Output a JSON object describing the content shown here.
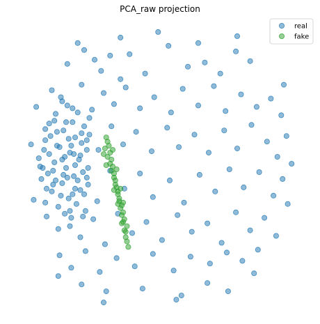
{
  "chart_data": {
    "type": "scatter",
    "title": "PCA_raw projection",
    "xlabel": "",
    "ylabel": "",
    "axes_visible": false,
    "grid": false,
    "legend_position": "top-right",
    "series": [
      {
        "name": "real",
        "color": "#1f77b4",
        "opacity": 0.5,
        "points": [
          [
            -7.2,
            7.1
          ],
          [
            -6.4,
            8.6
          ],
          [
            -5.9,
            8.1
          ],
          [
            -5.1,
            7.4
          ],
          [
            -4.6,
            6.6
          ],
          [
            -3.9,
            7.7
          ],
          [
            -3.1,
            6.0
          ],
          [
            -2.4,
            7.8
          ],
          [
            -1.2,
            6.4
          ],
          [
            0.6,
            8.4
          ],
          [
            2.1,
            6.9
          ],
          [
            3.4,
            7.2
          ],
          [
            4.6,
            6.4
          ],
          [
            5.8,
            8.0
          ],
          [
            6.9,
            7.3
          ],
          [
            -8.4,
            5.2
          ],
          [
            -7.6,
            4.4
          ],
          [
            -6.1,
            5.6
          ],
          [
            -5.3,
            3.8
          ],
          [
            -4.4,
            5.0
          ],
          [
            -3.6,
            4.2
          ],
          [
            -2.7,
            5.4
          ],
          [
            -1.6,
            3.9
          ],
          [
            -0.5,
            4.7
          ],
          [
            0.8,
            3.6
          ],
          [
            1.7,
            5.3
          ],
          [
            2.9,
            4.1
          ],
          [
            4.1,
            5.5
          ],
          [
            5.0,
            3.7
          ],
          [
            6.2,
            4.9
          ],
          [
            7.4,
            4.0
          ],
          [
            8.5,
            4.6
          ],
          [
            9.3,
            3.4
          ],
          [
            -8.9,
            2.4
          ],
          [
            -8.0,
            1.2
          ],
          [
            -7.3,
            2.9
          ],
          [
            -6.7,
            0.6
          ],
          [
            -5.5,
            2.0
          ],
          [
            -4.8,
            0.9
          ],
          [
            -3.8,
            2.6
          ],
          [
            -2.9,
            1.3
          ],
          [
            -1.9,
            2.2
          ],
          [
            -0.7,
            0.8
          ],
          [
            0.5,
            2.5
          ],
          [
            1.4,
            1.1
          ],
          [
            2.6,
            2.0
          ],
          [
            3.7,
            0.7
          ],
          [
            4.9,
            2.3
          ],
          [
            5.9,
            1.0
          ],
          [
            7.0,
            2.7
          ],
          [
            8.2,
            1.5
          ],
          [
            9.0,
            0.4
          ],
          [
            9.7,
            1.9
          ],
          [
            -9.1,
            -0.4
          ],
          [
            -8.3,
            -1.6
          ],
          [
            -7.5,
            -0.9
          ],
          [
            -6.8,
            -2.3
          ],
          [
            -5.7,
            -1.1
          ],
          [
            -4.9,
            -2.8
          ],
          [
            -3.9,
            -0.6
          ],
          [
            -2.8,
            -1.9
          ],
          [
            -1.6,
            -0.8
          ],
          [
            -0.6,
            -2.5
          ],
          [
            0.7,
            -1.3
          ],
          [
            1.8,
            -2.9
          ],
          [
            3.0,
            -0.9
          ],
          [
            4.2,
            -2.1
          ],
          [
            5.3,
            -0.5
          ],
          [
            6.4,
            -1.8
          ],
          [
            7.6,
            -0.7
          ],
          [
            8.7,
            -2.4
          ],
          [
            9.4,
            -1.2
          ],
          [
            -8.8,
            -3.9
          ],
          [
            -7.9,
            -4.8
          ],
          [
            -7.0,
            -3.5
          ],
          [
            -6.2,
            -5.4
          ],
          [
            -5.2,
            -4.1
          ],
          [
            -4.3,
            -5.9
          ],
          [
            -3.3,
            -3.7
          ],
          [
            -2.2,
            -5.1
          ],
          [
            -1.1,
            -4.3
          ],
          [
            0.1,
            -5.6
          ],
          [
            1.3,
            -3.8
          ],
          [
            2.4,
            -5.0
          ],
          [
            3.6,
            -4.4
          ],
          [
            4.7,
            -5.8
          ],
          [
            5.8,
            -3.6
          ],
          [
            6.9,
            -4.9
          ],
          [
            8.0,
            -4.0
          ],
          [
            8.9,
            -5.3
          ],
          [
            -7.8,
            -6.7
          ],
          [
            -6.9,
            -7.6
          ],
          [
            -5.8,
            -6.4
          ],
          [
            -4.7,
            -7.9
          ],
          [
            -3.4,
            -6.9
          ],
          [
            -2.0,
            -7.5
          ],
          [
            -0.6,
            -6.6
          ],
          [
            1.0,
            -7.8
          ],
          [
            2.3,
            -6.8
          ],
          [
            3.8,
            -7.3
          ],
          [
            5.1,
            -6.5
          ],
          [
            6.3,
            -7.1
          ],
          [
            7.5,
            -6.3
          ],
          [
            -6.1,
            -8.8
          ],
          [
            -4.2,
            -9.3
          ],
          [
            -1.4,
            -9.1
          ],
          [
            1.6,
            -9.6
          ],
          [
            3.6,
            -8.7
          ],
          [
            -4.4,
            -10.1
          ],
          [
            1.2,
            -9.9
          ],
          [
            5.2,
            -9.3
          ],
          [
            -9.6,
            4.0
          ],
          [
            -9.8,
            -2.7
          ],
          [
            9.8,
            -3.0
          ],
          [
            9.5,
            5.6
          ],
          [
            10.1,
            -0.1
          ],
          [
            -10.0,
            1.3
          ],
          [
            -3.1,
            9.0
          ],
          [
            -0.2,
            9.4
          ],
          [
            2.9,
            8.6
          ],
          [
            5.9,
            9.1
          ],
          [
            -7.9,
            -8.2
          ],
          [
            7.2,
            -8.0
          ],
          [
            -9.4,
            0.3
          ],
          [
            -9.2,
            -1.2
          ],
          [
            -8.9,
            1.6
          ],
          [
            -8.7,
            -0.8
          ],
          [
            -8.6,
            2.8
          ],
          [
            -8.4,
            -2.1
          ],
          [
            -8.2,
            0.0
          ],
          [
            -8.1,
            3.5
          ],
          [
            -7.9,
            -3.2
          ],
          [
            -7.8,
            1.1
          ],
          [
            -7.6,
            -1.5
          ],
          [
            -7.5,
            2.3
          ],
          [
            -7.3,
            -0.4
          ],
          [
            -7.2,
            4.1
          ],
          [
            -7.1,
            -2.6
          ],
          [
            -7.0,
            0.7
          ],
          [
            -6.9,
            -4.0
          ],
          [
            -6.8,
            2.9
          ],
          [
            -6.7,
            -1.0
          ],
          [
            -6.6,
            1.8
          ],
          [
            -6.5,
            -3.0
          ],
          [
            -6.4,
            3.6
          ],
          [
            -6.3,
            0.2
          ],
          [
            -6.2,
            -2.0
          ],
          [
            -6.1,
            1.4
          ],
          [
            -6.0,
            -0.7
          ],
          [
            -5.9,
            2.6
          ],
          [
            -5.8,
            -3.5
          ],
          [
            -5.7,
            0.9
          ],
          [
            -5.6,
            -1.6
          ],
          [
            -9.3,
            -0.3
          ],
          [
            -9.0,
            0.9
          ],
          [
            -8.8,
            -1.9
          ],
          [
            -8.5,
            1.9
          ],
          [
            -8.3,
            -0.6
          ],
          [
            -8.0,
            2.2
          ],
          [
            -7.7,
            -2.4
          ],
          [
            -7.4,
            0.4
          ],
          [
            -7.2,
            -1.1
          ],
          [
            -6.9,
            1.2
          ],
          [
            -6.6,
            -0.2
          ],
          [
            -6.4,
            -1.3
          ],
          [
            -6.2,
            0.5
          ],
          [
            -5.9,
            -2.3
          ],
          [
            -5.7,
            1.6
          ],
          [
            -8.6,
            0.6
          ],
          [
            -8.1,
            -1.3
          ],
          [
            -7.6,
            0.2
          ],
          [
            -7.1,
            1.7
          ],
          [
            -6.6,
            -1.9
          ],
          [
            -6.1,
            2.1
          ],
          [
            -5.6,
            -0.4
          ],
          [
            -8.9,
            -2.9
          ],
          [
            -8.2,
            3.0
          ],
          [
            -7.4,
            -3.7
          ],
          [
            -6.8,
            3.9
          ],
          [
            -6.0,
            -3.9
          ],
          [
            -5.5,
            3.2
          ],
          [
            -7.7,
            4.7
          ],
          [
            -7.0,
            -4.6
          ]
        ]
      },
      {
        "name": "fake",
        "color": "#2ca02c",
        "opacity": 0.5,
        "points": [
          [
            -4.2,
            1.8
          ],
          [
            -4.0,
            1.2
          ],
          [
            -3.9,
            0.7
          ],
          [
            -3.8,
            0.2
          ],
          [
            -3.7,
            -0.3
          ],
          [
            -3.6,
            -0.8
          ],
          [
            -3.5,
            -1.3
          ],
          [
            -3.4,
            -1.8
          ],
          [
            -3.3,
            -2.3
          ],
          [
            -3.2,
            -2.8
          ],
          [
            -3.1,
            -3.3
          ],
          [
            -3.0,
            -3.8
          ],
          [
            -2.9,
            -4.3
          ],
          [
            -2.8,
            -4.9
          ],
          [
            -2.7,
            -5.4
          ],
          [
            -4.3,
            1.0
          ],
          [
            -4.1,
            0.4
          ],
          [
            -3.9,
            -0.1
          ],
          [
            -3.8,
            -0.6
          ],
          [
            -3.6,
            -1.1
          ],
          [
            -3.5,
            -1.6
          ],
          [
            -3.3,
            -2.1
          ],
          [
            -3.2,
            -2.6
          ],
          [
            -3.0,
            -3.1
          ],
          [
            -2.9,
            -3.6
          ],
          [
            -2.8,
            -4.1
          ],
          [
            -2.6,
            -4.6
          ],
          [
            -2.6,
            -5.7
          ],
          [
            -2.5,
            -6.1
          ],
          [
            -4.1,
            1.5
          ],
          [
            -3.7,
            0.9
          ],
          [
            -3.4,
            -0.5
          ],
          [
            -3.1,
            -1.9
          ],
          [
            -2.9,
            -2.9
          ],
          [
            -4.4,
            0.6
          ],
          [
            -4.2,
            -0.2
          ],
          [
            -3.6,
            -2.0
          ],
          [
            -3.3,
            -3.0
          ],
          [
            -3.0,
            -4.4
          ],
          [
            -2.7,
            -5.0
          ]
        ]
      }
    ],
    "xlim": [
      -11.0,
      11.0
    ],
    "ylim": [
      -10.8,
      10.2
    ]
  },
  "legend": {
    "items": [
      {
        "label": "real",
        "color": "#1f77b4"
      },
      {
        "label": "fake",
        "color": "#2ca02c"
      }
    ]
  }
}
